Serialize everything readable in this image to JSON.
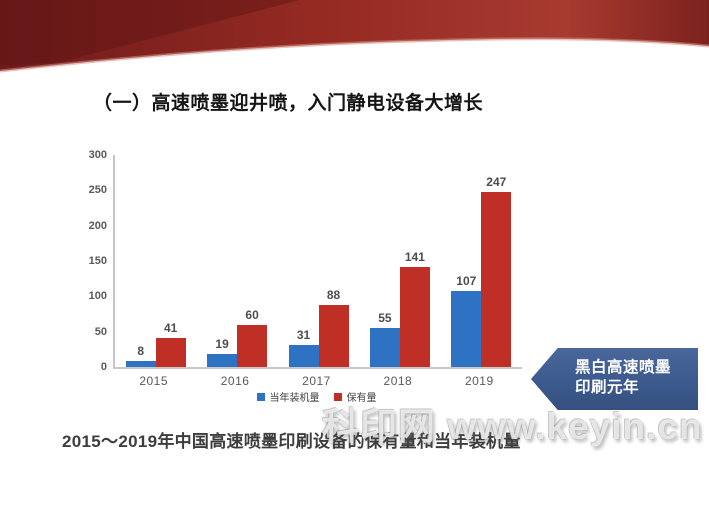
{
  "slide": {
    "title": "（一）高速喷墨迎井喷，入门静电设备大增长",
    "caption": "2015～2019年中国高速喷墨印刷设备的保有量和当年装机量",
    "watermark": "科印网 www.keyin.cn",
    "banner": {
      "line1": "黑白高速喷墨",
      "line2": "印刷元年",
      "color": "#3c5a8d"
    }
  },
  "chart_data": {
    "type": "bar",
    "title": "",
    "xlabel": "",
    "ylabel": "",
    "categories": [
      "2015",
      "2016",
      "2017",
      "2018",
      "2019"
    ],
    "series": [
      {
        "name": "当年装机量",
        "color": "#2e72c4",
        "values": [
          8,
          19,
          31,
          55,
          107
        ]
      },
      {
        "name": "保有量",
        "color": "#c02f26",
        "values": [
          41,
          60,
          88,
          141,
          247
        ]
      }
    ],
    "ylim": [
      0,
      300
    ],
    "yticks": [
      0,
      50,
      100,
      150,
      200,
      250,
      300
    ],
    "grid": false,
    "legend_position": "bottom"
  }
}
